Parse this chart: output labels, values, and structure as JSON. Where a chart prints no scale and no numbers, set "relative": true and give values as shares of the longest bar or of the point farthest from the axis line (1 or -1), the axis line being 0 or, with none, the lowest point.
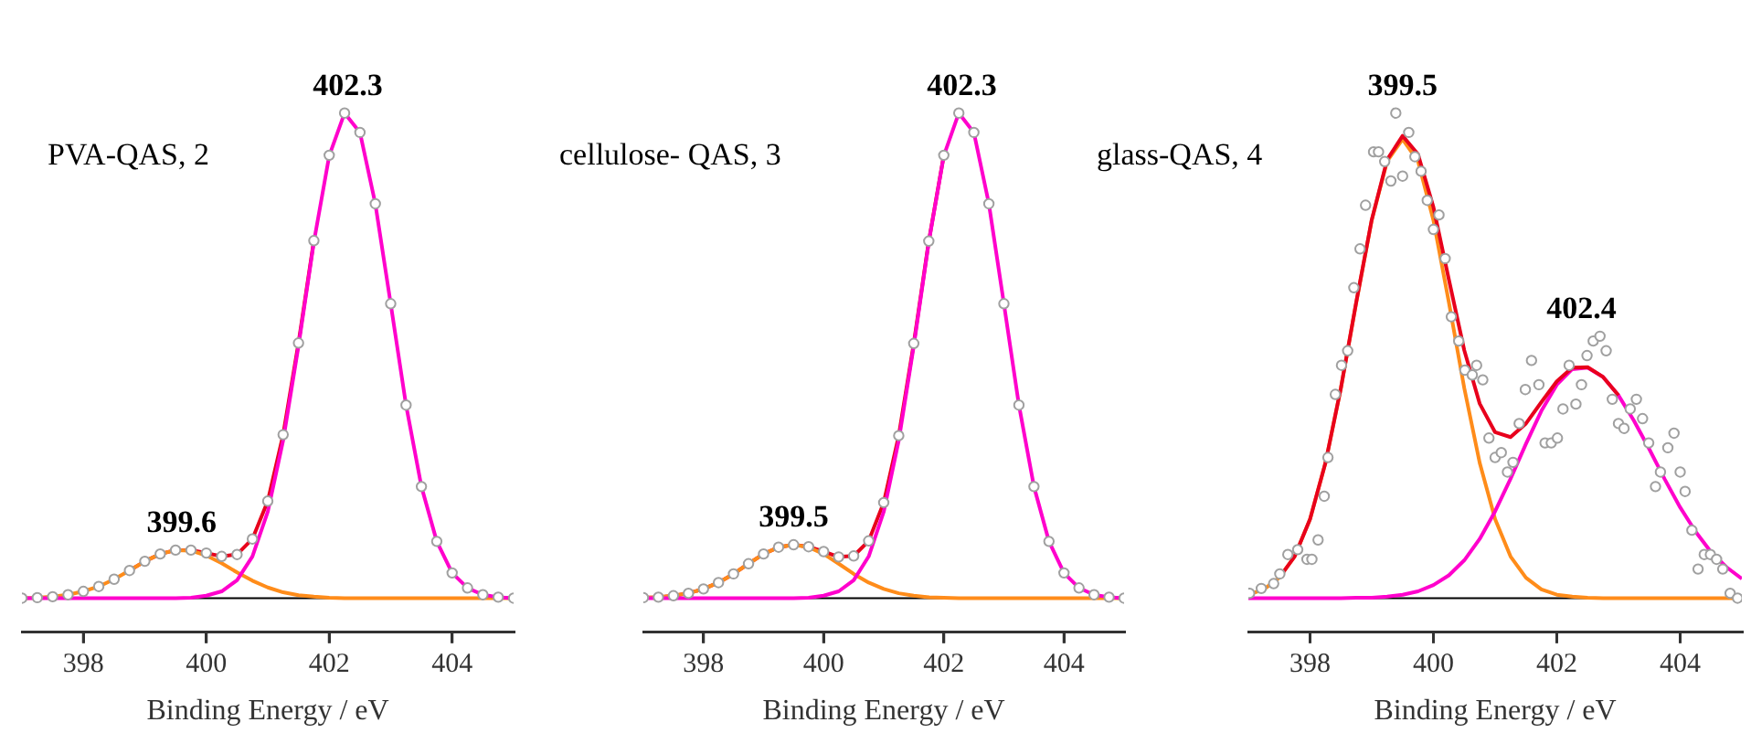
{
  "chart_data": [
    {
      "type": "line",
      "relative": true,
      "xlabel": "Binding Energy / eV",
      "xlim": [
        397,
        405
      ],
      "xticks": [
        398,
        400,
        402,
        404
      ],
      "tick_labels": "x",
      "grid": false,
      "legend": false,
      "x": [
        397,
        397.25,
        397.5,
        397.75,
        398,
        398.25,
        398.5,
        398.75,
        399,
        399.25,
        399.5,
        399.75,
        400,
        400.25,
        400.5,
        400.75,
        401,
        401.25,
        401.5,
        401.75,
        402,
        402.25,
        402.5,
        402.75,
        403,
        403.25,
        403.5,
        403.75,
        404,
        404.25,
        404.5,
        404.75,
        405
      ],
      "series": [
        {
          "color": "#e8001c",
          "values": [
            null,
            null,
            null,
            null,
            null,
            null,
            null,
            0.057,
            0.076,
            0.091,
            0.099,
            0.099,
            0.093,
            0.086,
            0.09,
            0.122,
            0.2,
            0.337,
            0.526,
            0.737,
            null,
            null,
            null,
            null,
            null,
            null,
            null,
            null,
            null,
            null,
            null,
            null,
            null
          ]
        },
        {
          "color": "#ff8c1a",
          "values": [
            0,
            0.001,
            0.003,
            0.007,
            0.014,
            0.024,
            0.039,
            0.057,
            0.076,
            0.091,
            0.099,
            0.098,
            0.088,
            0.072,
            0.053,
            0.036,
            0.022,
            0.012,
            0.006,
            0.003,
            0.001,
            0,
            0,
            0,
            0,
            0,
            0,
            0,
            0,
            0,
            0,
            0,
            0
          ]
        },
        {
          "color": "#ff00cc",
          "values": [
            0,
            0,
            0,
            0,
            0,
            0,
            0,
            0,
            0,
            0,
            0,
            0.001,
            0.005,
            0.014,
            0.037,
            0.086,
            0.178,
            0.325,
            0.52,
            0.734,
            0.912,
            1,
            0.96,
            0.813,
            0.607,
            0.398,
            0.23,
            0.117,
            0.052,
            0.021,
            0.007,
            0.002,
            0
          ]
        },
        {
          "type": "scatter",
          "color": "#a0a0a0",
          "marker": "circle",
          "values": [
            0,
            0.001,
            0.003,
            0.007,
            0.014,
            0.024,
            0.039,
            0.057,
            0.076,
            0.091,
            0.099,
            0.099,
            0.093,
            0.086,
            0.09,
            0.122,
            0.2,
            0.337,
            0.526,
            0.737,
            0.913,
            1,
            0.96,
            0.813,
            0.607,
            0.398,
            0.23,
            0.117,
            0.052,
            0.021,
            0.007,
            0.002,
            0
          ]
        }
      ],
      "ref_lines": [
        {
          "axis": "y",
          "value": 0,
          "color": "#000000"
        }
      ],
      "annotations": [
        "PVA-QAS, 2",
        {
          "text": "402.3",
          "x": 402.3,
          "y": 1
        },
        {
          "text": "399.6",
          "x": 399.6,
          "y": 0.099
        }
      ]
    },
    {
      "type": "line",
      "relative": true,
      "xlabel": "Binding Energy / eV",
      "xlim": [
        397,
        405
      ],
      "xticks": [
        398,
        400,
        402,
        404
      ],
      "tick_labels": "x",
      "grid": false,
      "legend": false,
      "x": [
        397,
        397.25,
        397.5,
        397.75,
        398,
        398.25,
        398.5,
        398.75,
        399,
        399.25,
        399.5,
        399.75,
        400,
        400.25,
        400.5,
        400.75,
        401,
        401.25,
        401.5,
        401.75,
        402,
        402.25,
        402.5,
        402.75,
        403,
        403.25,
        403.5,
        403.75,
        404,
        404.25,
        404.5,
        404.75,
        405
      ],
      "series": [
        {
          "color": "#e8001c",
          "values": [
            0.001,
            0.002,
            0.005,
            0.01,
            0.019,
            0.032,
            0.05,
            0.071,
            0.091,
            0.105,
            0.11,
            0.106,
            0.096,
            0.085,
            0.087,
            0.118,
            0.197,
            0.335,
            0.525,
            0.736,
            0.913,
            null,
            null,
            null,
            null,
            null,
            null,
            null,
            null,
            null,
            null,
            null,
            null
          ]
        },
        {
          "color": "#ff8c1a",
          "values": [
            0.001,
            0.002,
            0.005,
            0.01,
            0.019,
            0.032,
            0.05,
            0.071,
            0.091,
            0.105,
            0.11,
            0.105,
            0.091,
            0.071,
            0.05,
            0.032,
            0.019,
            0.01,
            0.005,
            0.002,
            0.001,
            0,
            0,
            0,
            0,
            0,
            0,
            0,
            0,
            0,
            0,
            0,
            0
          ]
        },
        {
          "color": "#ff00cc",
          "values": [
            0,
            0,
            0,
            0,
            0,
            0,
            0,
            0,
            0,
            0,
            0,
            0.001,
            0.005,
            0.014,
            0.037,
            0.086,
            0.178,
            0.325,
            0.52,
            0.734,
            0.912,
            1,
            0.96,
            0.813,
            0.607,
            0.398,
            0.23,
            0.117,
            0.052,
            0.021,
            0.007,
            0.002,
            0
          ]
        },
        {
          "type": "scatter",
          "color": "#a0a0a0",
          "marker": "circle",
          "values": [
            0.001,
            0.002,
            0.005,
            0.01,
            0.019,
            0.032,
            0.05,
            0.071,
            0.091,
            0.105,
            0.11,
            0.106,
            0.096,
            0.085,
            0.087,
            0.118,
            0.197,
            0.335,
            0.525,
            0.736,
            0.913,
            1,
            0.96,
            0.813,
            0.607,
            0.398,
            0.23,
            0.117,
            0.052,
            0.021,
            0.007,
            0.002,
            0
          ]
        }
      ],
      "ref_lines": [
        {
          "axis": "y",
          "value": 0,
          "color": "#000000"
        }
      ],
      "annotations": [
        "cellulose- QAS, 3",
        {
          "text": "402.3",
          "x": 402.3,
          "y": 1
        },
        {
          "text": "399.5",
          "x": 399.5,
          "y": 0.11
        }
      ]
    },
    {
      "type": "line",
      "relative": true,
      "xlabel": "Binding Energy / eV",
      "xlim": [
        397,
        405
      ],
      "xticks": [
        398,
        400,
        402,
        404
      ],
      "tick_labels": "x",
      "grid": false,
      "legend": false,
      "x": [
        397,
        397.25,
        397.5,
        397.75,
        398,
        398.25,
        398.5,
        398.75,
        399,
        399.25,
        399.5,
        399.75,
        400,
        400.25,
        400.5,
        400.75,
        401,
        401.25,
        401.5,
        401.75,
        402,
        402.25,
        402.5,
        402.75,
        403,
        403.25,
        403.5,
        403.75,
        404,
        404.25,
        404.5,
        404.75,
        405
      ],
      "series": [
        {
          "color": "#ff8c1a",
          "values": [
            0.007,
            0.018,
            0.042,
            0.086,
            0.163,
            0.279,
            0.433,
            0.61,
            0.779,
            0.901,
            0.946,
            0.901,
            0.779,
            0.61,
            0.433,
            0.279,
            0.163,
            0.086,
            0.042,
            0.018,
            0.007,
            0.003,
            0.001,
            0,
            0,
            0,
            0,
            0,
            0,
            0,
            0,
            0,
            0
          ]
        },
        {
          "color": "#ff00cc",
          "values": [
            0,
            0,
            0,
            0,
            0,
            0,
            0,
            0.001,
            0.001,
            0.003,
            0.007,
            0.014,
            0.027,
            0.047,
            0.078,
            0.122,
            0.179,
            0.246,
            0.318,
            0.386,
            0.44,
            0.472,
            0.475,
            0.456,
            0.418,
            0.366,
            0.307,
            0.245,
            0.187,
            0.137,
            0.095,
            0.064,
            0.04
          ]
        },
        {
          "color": "#e8001c",
          "values": [
            null,
            null,
            0.042,
            0.086,
            0.163,
            0.279,
            0.433,
            0.611,
            0.78,
            0.904,
            0.953,
            0.915,
            0.806,
            0.657,
            0.511,
            0.401,
            0.342,
            0.332,
            0.36,
            0.404,
            0.447,
            0.475,
            0.476,
            0.456,
            0.418,
            null,
            null,
            null,
            null,
            null,
            null,
            null,
            null
          ]
        },
        {
          "type": "scatter",
          "color": "#a0a0a0",
          "marker": "circle",
          "x": [
            397.02,
            397.21,
            397.41,
            397.51,
            397.64,
            397.8,
            397.95,
            398.03,
            398.13,
            398.23,
            398.29,
            398.41,
            398.51,
            398.61,
            398.71,
            398.81,
            398.9,
            399.03,
            399.11,
            399.21,
            399.31,
            399.39,
            399.5,
            399.6,
            399.7,
            399.8,
            399.9,
            400,
            400.09,
            400.19,
            400.29,
            400.41,
            400.51,
            400.63,
            400.7,
            400.8,
            400.9,
            401,
            401.1,
            401.2,
            401.29,
            401.39,
            401.49,
            401.59,
            401.71,
            401.81,
            401.91,
            402.01,
            402.1,
            402.2,
            402.31,
            402.4,
            402.49,
            402.59,
            402.7,
            402.8,
            402.9,
            403,
            403.09,
            403.19,
            403.29,
            403.39,
            403.49,
            403.6,
            403.68,
            403.8,
            403.9,
            404,
            404.08,
            404.19,
            404.29,
            404.39,
            404.49,
            404.59,
            404.69,
            404.81,
            404.93
          ],
          "values": [
            0.01,
            0.02,
            0.03,
            0.05,
            0.09,
            0.1,
            0.08,
            0.08,
            0.12,
            0.21,
            0.29,
            0.42,
            0.48,
            0.51,
            0.64,
            0.72,
            0.81,
            0.92,
            0.92,
            0.9,
            0.86,
            1,
            0.87,
            0.96,
            0.91,
            0.88,
            0.82,
            0.76,
            0.79,
            0.7,
            0.58,
            0.53,
            0.47,
            0.46,
            0.48,
            0.45,
            0.33,
            0.29,
            0.3,
            0.26,
            0.28,
            0.36,
            0.43,
            0.49,
            0.44,
            0.32,
            0.32,
            0.33,
            0.39,
            0.48,
            0.4,
            0.44,
            0.5,
            0.53,
            0.54,
            0.51,
            0.41,
            0.36,
            0.35,
            0.39,
            0.41,
            0.37,
            0.32,
            0.23,
            0.26,
            0.31,
            0.34,
            0.26,
            0.22,
            0.14,
            0.06,
            0.09,
            0.09,
            0.08,
            0.06,
            0.01,
            0
          ]
        }
      ],
      "ref_lines": [
        {
          "axis": "y",
          "value": 0,
          "color": "#000000"
        }
      ],
      "annotations": [
        "glass-QAS, 4",
        {
          "text": "399.5",
          "x": 399.5,
          "y": 1
        },
        {
          "text": "402.4",
          "x": 402.4,
          "y": 0.54
        }
      ]
    }
  ]
}
